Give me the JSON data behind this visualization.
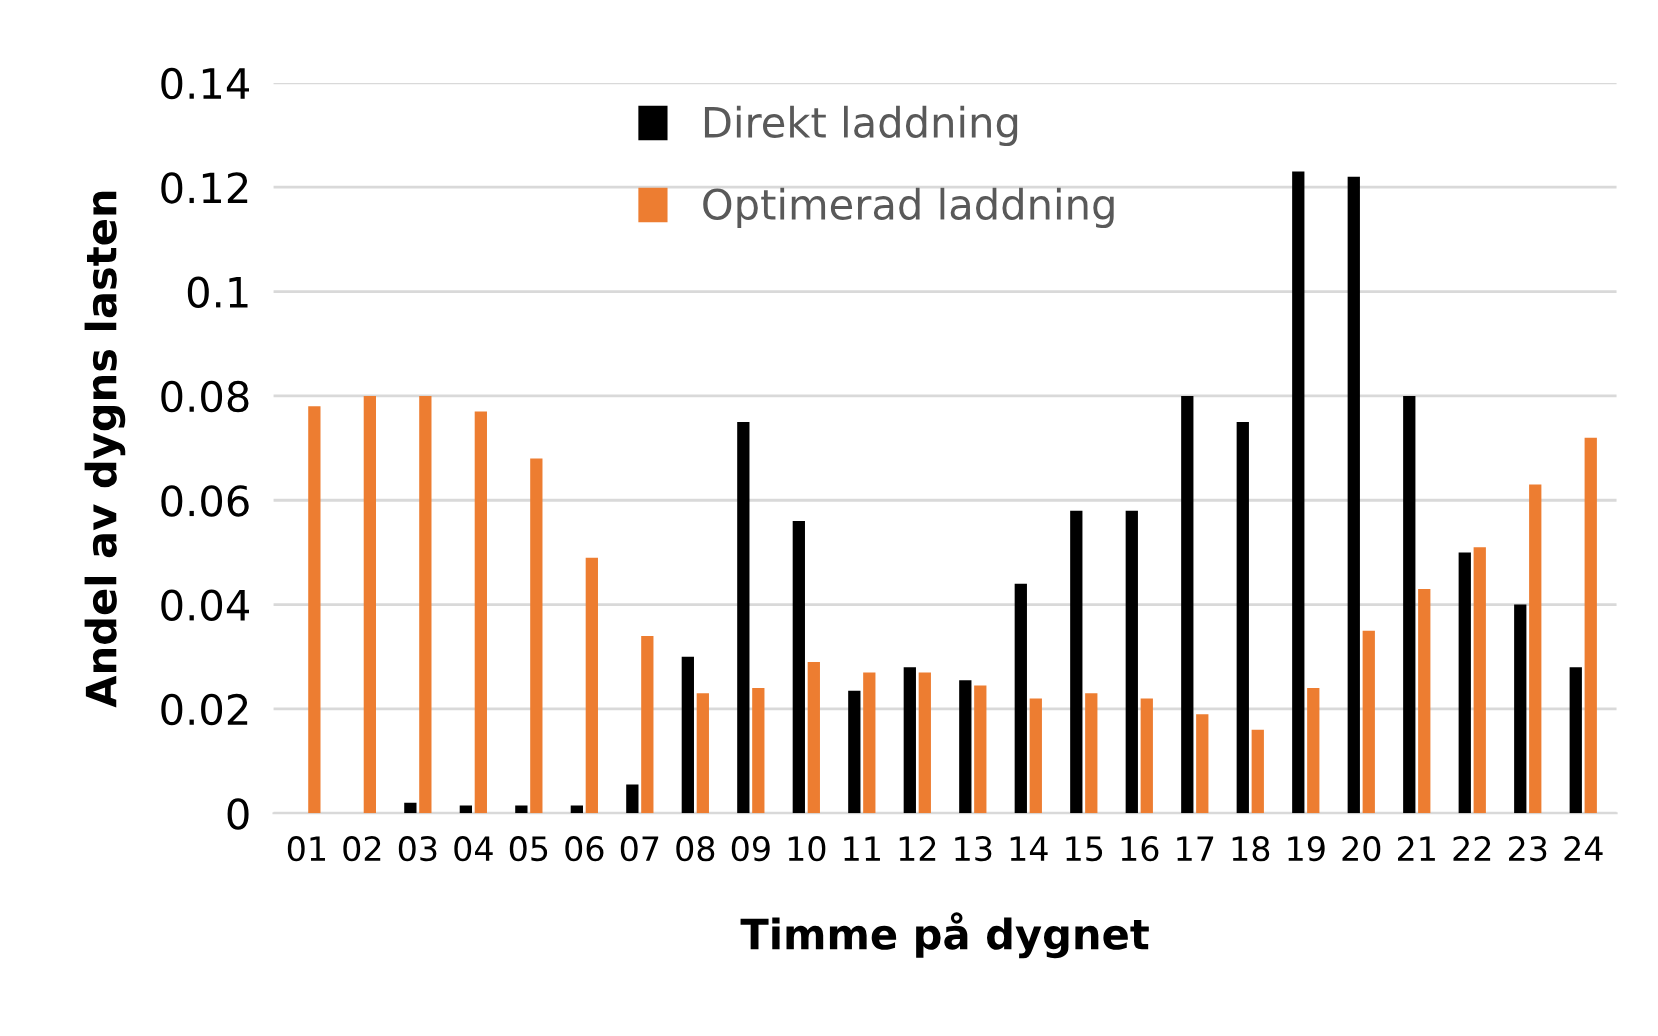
{
  "chart_data": {
    "type": "bar",
    "xlabel": "Timme på dygnet",
    "ylabel": "Andel av dygns lasten",
    "categories": [
      "01",
      "02",
      "03",
      "04",
      "05",
      "06",
      "07",
      "08",
      "09",
      "10",
      "11",
      "12",
      "13",
      "14",
      "15",
      "16",
      "17",
      "18",
      "19",
      "20",
      "21",
      "22",
      "23",
      "24"
    ],
    "series": [
      {
        "name": "Direkt laddning",
        "color": "#000000",
        "values": [
          0,
          0,
          0.002,
          0.0015,
          0.0015,
          0.0015,
          0.0055,
          0.03,
          0.075,
          0.056,
          0.0235,
          0.028,
          0.0255,
          0.044,
          0.058,
          0.058,
          0.08,
          0.075,
          0.123,
          0.122,
          0.08,
          0.05,
          0.04,
          0.028
        ]
      },
      {
        "name": "Optimerad laddning",
        "color": "#ed7d31",
        "values": [
          0.078,
          0.08,
          0.08,
          0.077,
          0.068,
          0.049,
          0.034,
          0.023,
          0.024,
          0.029,
          0.027,
          0.027,
          0.0245,
          0.022,
          0.023,
          0.022,
          0.019,
          0.016,
          0.024,
          0.035,
          0.043,
          0.051,
          0.063,
          0.072
        ]
      }
    ],
    "ylim": [
      0,
      0.14
    ],
    "yticks": [
      0,
      0.02,
      0.04,
      0.06,
      0.08,
      0.1,
      0.12,
      0.14
    ],
    "grid": "y",
    "legend": "top"
  }
}
